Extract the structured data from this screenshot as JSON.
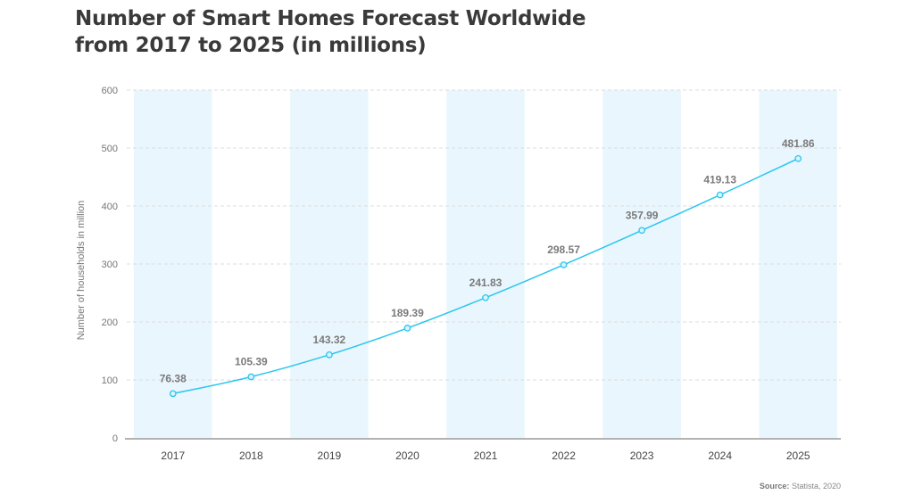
{
  "title_line1": "Number of Smart Homes Forecast Worldwide",
  "title_line2": "from 2017 to 2025 (in millions)",
  "source_label": "Source:",
  "source_value": "Statista, 2020",
  "colors": {
    "line": "#29c6ee",
    "band": "#eaf6fd",
    "grid": "#dcdcdc",
    "axis": "#999999"
  },
  "chart_data": {
    "type": "line",
    "title": "Number of Smart Homes Forecast Worldwide from 2017 to 2025 (in millions)",
    "xlabel": "",
    "ylabel": "Number of households in million",
    "categories": [
      "2017",
      "2018",
      "2019",
      "2020",
      "2021",
      "2022",
      "2023",
      "2024",
      "2025"
    ],
    "values": [
      76.38,
      105.39,
      143.32,
      189.39,
      241.83,
      298.57,
      357.99,
      419.13,
      481.86
    ],
    "data_labels": [
      "76.38",
      "105.39",
      "143.32",
      "189.39",
      "241.83",
      "298.57",
      "357.99",
      "419.13",
      "481.86"
    ],
    "yticks": [
      "0",
      "100",
      "200",
      "300",
      "400",
      "500",
      "600"
    ],
    "ylim": [
      0,
      600
    ],
    "grid": true,
    "alternating_column_bands": true
  }
}
